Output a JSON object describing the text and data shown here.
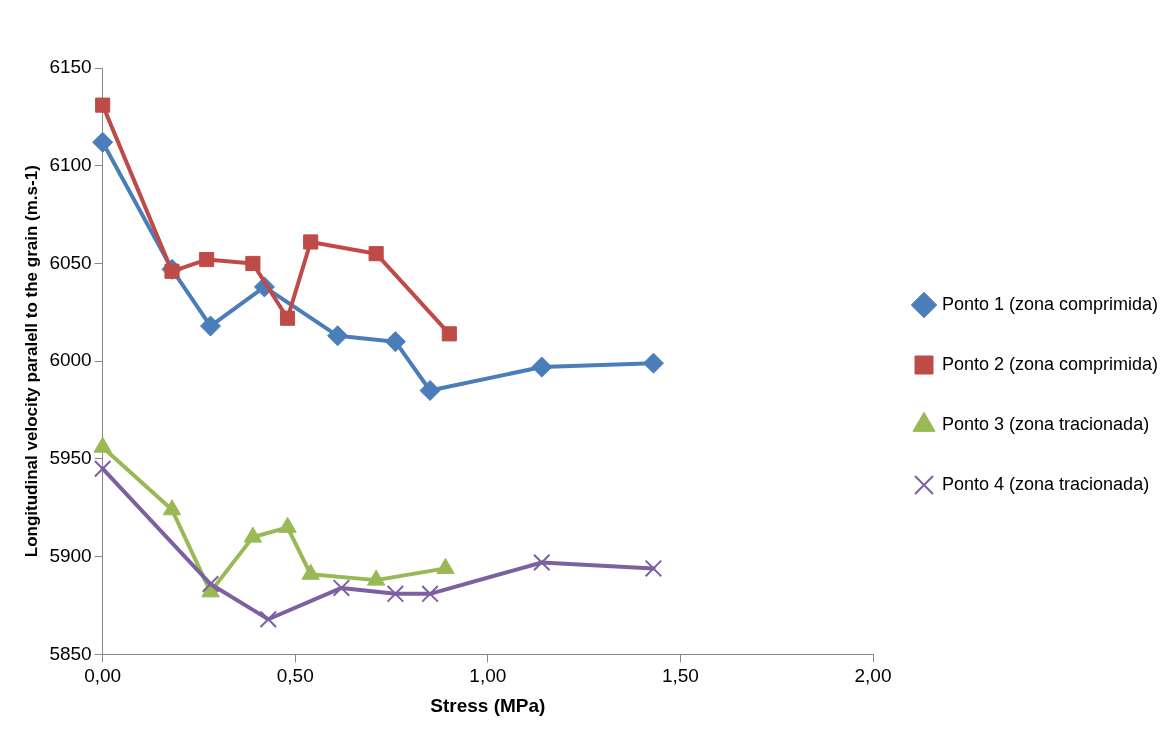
{
  "chart_data": {
    "type": "line",
    "xlabel": "Stress (MPa)",
    "ylabel": "Longitudinal velocity paralell to the grain (m.s-1)",
    "xlim": [
      0,
      2
    ],
    "xticks": [
      {
        "value": 0,
        "label": "0,00"
      },
      {
        "value": 0.5,
        "label": "0,50"
      },
      {
        "value": 1,
        "label": "1,00"
      },
      {
        "value": 1.5,
        "label": "1,50"
      },
      {
        "value": 2,
        "label": "2,00"
      }
    ],
    "ylim": [
      5850,
      6150
    ],
    "yticks": [
      5850,
      5900,
      5950,
      6000,
      6050,
      6100,
      6150
    ],
    "grid": false,
    "legend": "right",
    "line_style": "solid",
    "series": [
      {
        "name": "Ponto 1 (zona comprimida)",
        "color": "#4a7ebb",
        "marker": "diamond",
        "x": [
          0,
          0.18,
          0.28,
          0.42,
          0.61,
          0.76,
          0.85,
          1.14,
          1.43
        ],
        "values": [
          6112,
          6047,
          6018,
          6038,
          6013,
          6010,
          5985,
          5997,
          5999
        ]
      },
      {
        "name": "Ponto 2 (zona comprimida)",
        "color": "#be4b48",
        "marker": "square",
        "x": [
          0,
          0.18,
          0.27,
          0.39,
          0.48,
          0.54,
          0.71,
          0.9
        ],
        "values": [
          6131,
          6046,
          6052,
          6050,
          6022,
          6061,
          6055,
          6014
        ]
      },
      {
        "name": "Ponto 3 (zona tracionada)",
        "color": "#98b954",
        "marker": "triangle",
        "x": [
          0,
          0.18,
          0.28,
          0.39,
          0.48,
          0.54,
          0.71,
          0.89
        ],
        "values": [
          5956,
          5924,
          5882,
          5910,
          5915,
          5891,
          5888,
          5894
        ]
      },
      {
        "name": "Ponto 4 (zona tracionada)",
        "color": "#7d60a0",
        "marker": "cross",
        "x": [
          0,
          0.28,
          0.43,
          0.62,
          0.76,
          0.85,
          1.14,
          1.43
        ],
        "values": [
          5945,
          5886,
          5868,
          5884,
          5881,
          5881,
          5897,
          5894
        ]
      }
    ]
  }
}
